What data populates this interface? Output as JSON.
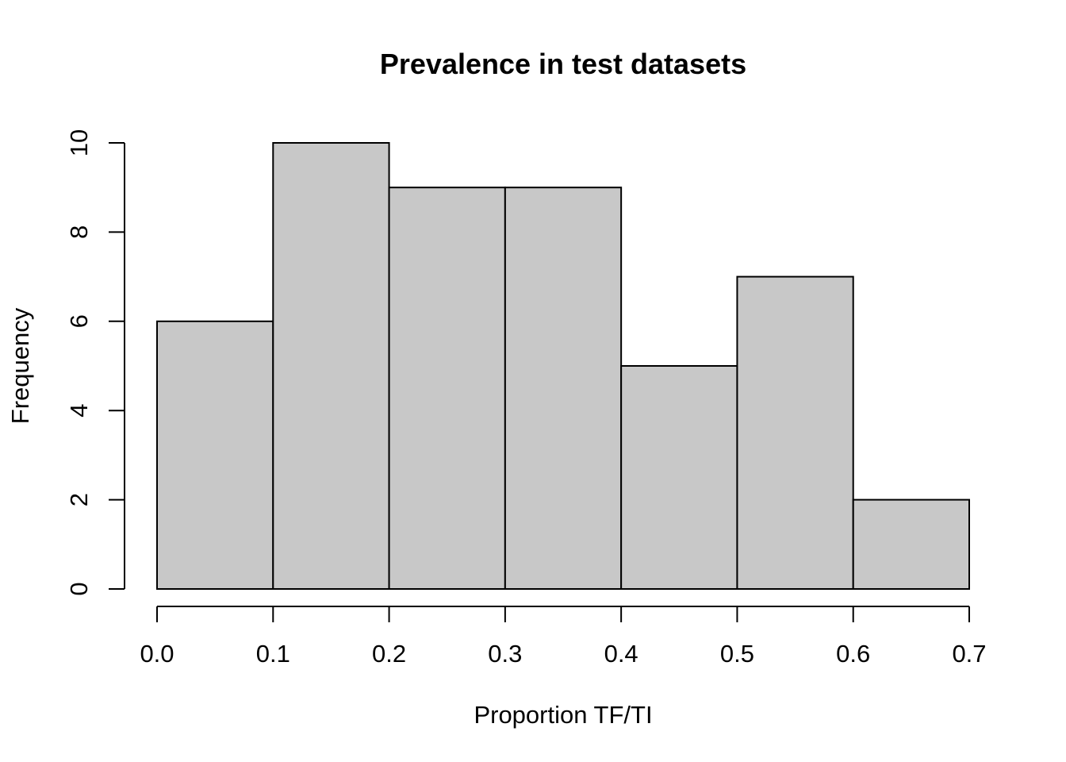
{
  "chart_data": {
    "type": "bar",
    "title": "Prevalence in test datasets",
    "xlabel": "Proportion TF/TI",
    "ylabel": "Frequency",
    "bins": [
      {
        "start": 0.0,
        "end": 0.1,
        "count": 6
      },
      {
        "start": 0.1,
        "end": 0.2,
        "count": 10
      },
      {
        "start": 0.2,
        "end": 0.3,
        "count": 9
      },
      {
        "start": 0.3,
        "end": 0.4,
        "count": 9
      },
      {
        "start": 0.4,
        "end": 0.5,
        "count": 5
      },
      {
        "start": 0.5,
        "end": 0.6,
        "count": 7
      },
      {
        "start": 0.6,
        "end": 0.7,
        "count": 2
      }
    ],
    "xlim": [
      0.0,
      0.7
    ],
    "ylim": [
      0,
      10
    ],
    "x_ticks": [
      "0.0",
      "0.1",
      "0.2",
      "0.3",
      "0.4",
      "0.5",
      "0.6",
      "0.7"
    ],
    "y_ticks": [
      "0",
      "2",
      "4",
      "6",
      "8",
      "10"
    ],
    "bar_color": "#c8c8c8",
    "edge_color": "#000000",
    "grid": false
  }
}
